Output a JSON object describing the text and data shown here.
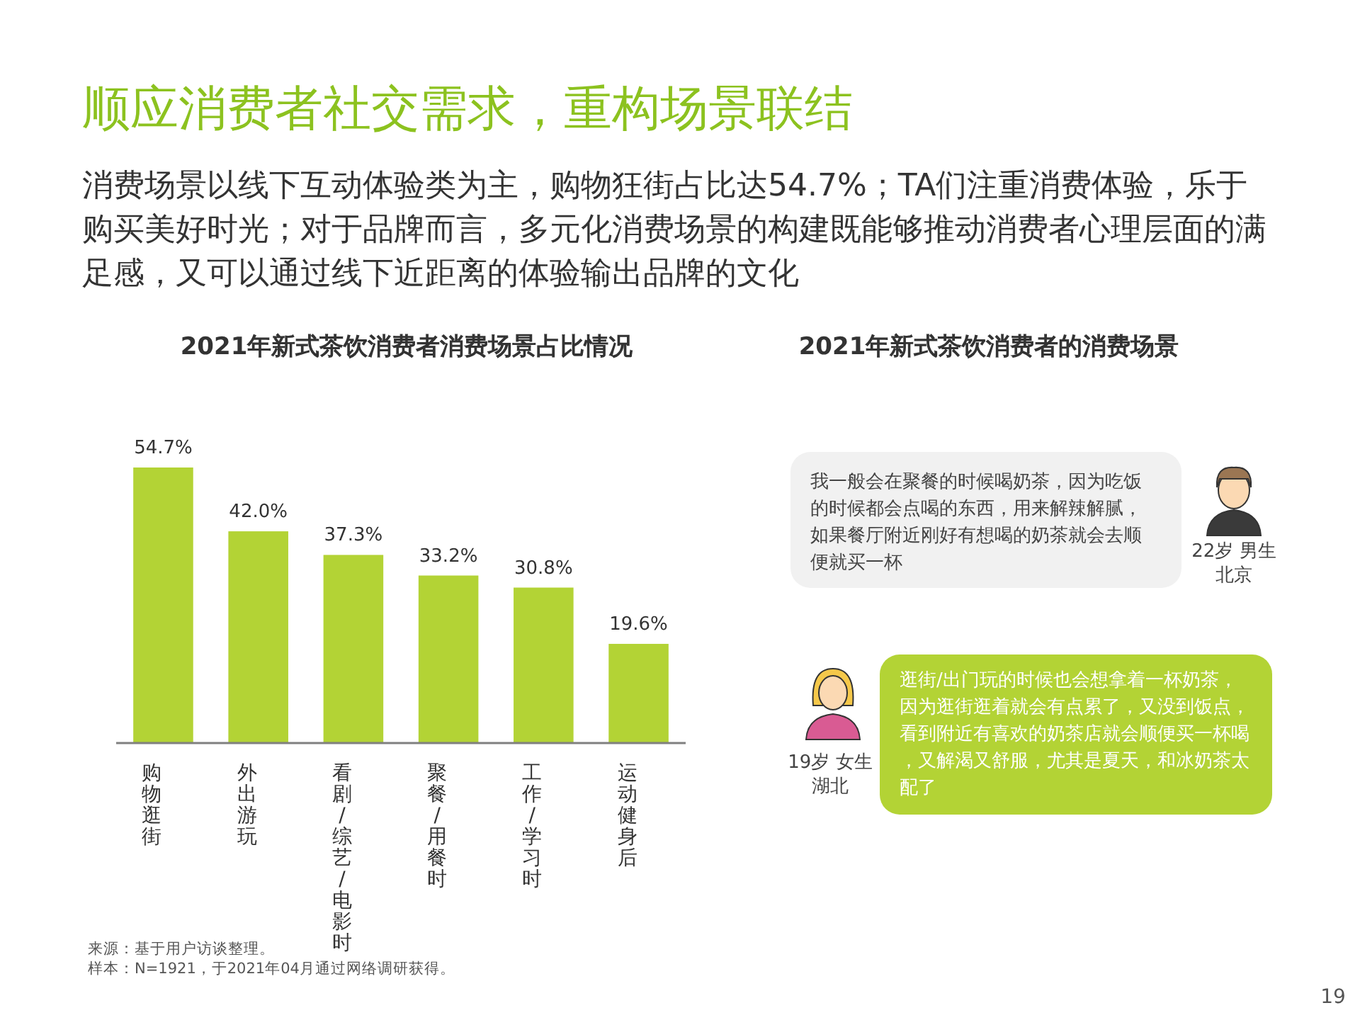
{
  "chart_data": [
    {
      "type": "other",
      "title": "顺应消费者社交需求，重构场景联结",
      "subtitle": "消费场景以线下互动体验类为主，购物狂街占比达54.7%；TA们注重消费体验，乐于购买美好时光；对于品牌而言，多元化消费场景的构建既能够推动消费者心理层面的满足感，又可以通过线下近距离的体验输出品牌的文化"
    },
    {
      "type": "bar",
      "title": "2021年新式茶饮消费者消费场景占比情况",
      "categories": [
        "购物逛街",
        "外出游玩",
        "看剧/综艺/电影时",
        "聚餐/用餐时",
        "工作/学习时",
        "运动健身后"
      ],
      "values": [
        54.7,
        42.0,
        37.3,
        33.2,
        30.8,
        19.6
      ],
      "value_labels": [
        "54.7%",
        "42.0%",
        "37.3%",
        "33.2%",
        "30.8%",
        "19.6%"
      ],
      "color": "#b3d335",
      "annotations": [
        "来源：基于用户访谈整理。",
        "样本：N=1921，于2021年04月通过网络调研获得。"
      ]
    },
    {
      "type": "other",
      "title": "2021年新式茶饮消费者的消费场景",
      "annotations": [
        "我一般会在聚餐的时候喝奶茶，因为吃饭的时候都会点喝的东西，用来解辣解腻，如果餐厅附近刚好有想喝的奶茶就会去顺便就买一杯",
        "22岁 男生",
        "北京",
        "逛街/出门玩的时候也会想拿着一杯奶茶，因为逛街逛着就会有点累了，又没到饭点，看到附近有喜欢的奶茶店就会顺便买一杯喝，又解渴又舒服，尤其是夏天，和冰奶茶太配了",
        "19岁 女生",
        "湖北",
        "19"
      ]
    }
  ]
}
